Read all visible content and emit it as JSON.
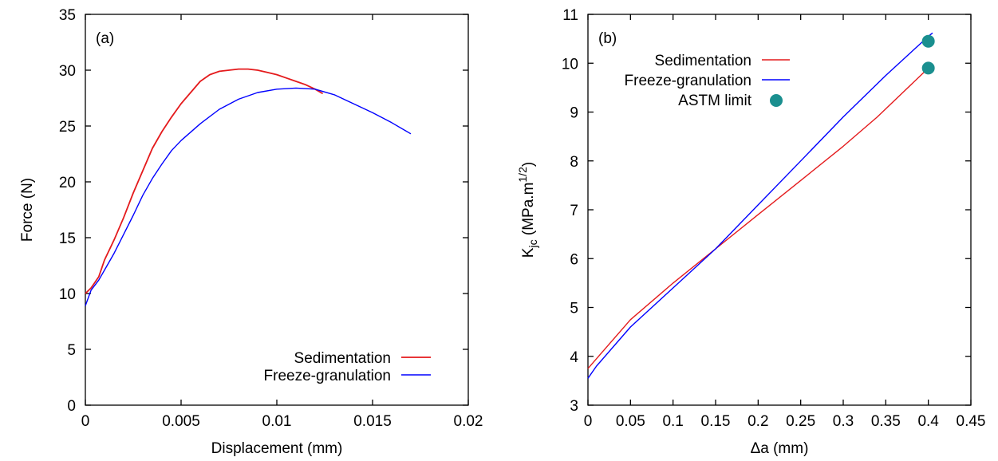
{
  "chart_data": [
    {
      "type": "line",
      "panel_label": "(a)",
      "xlabel": "Displacement (mm)",
      "ylabel": "Force (N)",
      "xlim": [
        0,
        0.02
      ],
      "ylim": [
        0,
        35
      ],
      "xticks": [
        "0",
        "0.005",
        "0.01",
        "0.015",
        "0.02"
      ],
      "yticks": [
        "0",
        "5",
        "10",
        "15",
        "20",
        "25",
        "30",
        "35"
      ],
      "grid": false,
      "legend_position": "bottom-right",
      "series": [
        {
          "name": "Sedimentation",
          "color": "#e41a1c",
          "x": [
            0,
            0.0003,
            0.0007,
            0.001,
            0.0015,
            0.002,
            0.0025,
            0.003,
            0.0035,
            0.004,
            0.0045,
            0.005,
            0.0055,
            0.006,
            0.0065,
            0.007,
            0.0075,
            0.008,
            0.0085,
            0.009,
            0.0095,
            0.01,
            0.0105,
            0.011,
            0.0115,
            0.012,
            0.0124
          ],
          "y": [
            10.0,
            10.5,
            11.5,
            13.0,
            14.8,
            16.8,
            19.0,
            21.0,
            23.0,
            24.5,
            25.8,
            27.0,
            28.0,
            29.0,
            29.6,
            29.9,
            30.0,
            30.1,
            30.1,
            30.0,
            29.8,
            29.6,
            29.3,
            29.0,
            28.7,
            28.3,
            27.9
          ]
        },
        {
          "name": "Freeze-granulation",
          "color": "#0000ff",
          "x": [
            0,
            0.0003,
            0.0007,
            0.001,
            0.0015,
            0.002,
            0.0025,
            0.003,
            0.0035,
            0.004,
            0.0045,
            0.005,
            0.006,
            0.007,
            0.008,
            0.009,
            0.01,
            0.011,
            0.012,
            0.013,
            0.014,
            0.015,
            0.016,
            0.017
          ],
          "y": [
            8.9,
            10.3,
            11.2,
            12.1,
            13.6,
            15.3,
            17.0,
            18.8,
            20.3,
            21.6,
            22.8,
            23.7,
            25.2,
            26.5,
            27.4,
            28.0,
            28.3,
            28.4,
            28.3,
            27.8,
            27.0,
            26.2,
            25.3,
            24.3
          ]
        }
      ]
    },
    {
      "type": "line",
      "panel_label": "(b)",
      "xlabel": "Δa (mm)",
      "ylabel_main": "K",
      "ylabel_sub": "jc",
      "ylabel_rest": " (MPa.m",
      "ylabel_sup": "1/2",
      "ylabel_end": ")",
      "xlim": [
        0,
        0.45
      ],
      "ylim": [
        3,
        11
      ],
      "xticks": [
        "0",
        "0.05",
        "0.1",
        "0.15",
        "0.2",
        "0.25",
        "0.3",
        "0.35",
        "0.4",
        "0.45"
      ],
      "yticks": [
        "3",
        "4",
        "5",
        "6",
        "7",
        "8",
        "9",
        "10",
        "11"
      ],
      "grid": false,
      "legend_position": "top-left",
      "series": [
        {
          "name": "Sedimentation",
          "color": "#e41a1c",
          "x": [
            0,
            0.02,
            0.05,
            0.08,
            0.1,
            0.15,
            0.2,
            0.25,
            0.3,
            0.34,
            0.37,
            0.4
          ],
          "y": [
            3.75,
            4.15,
            4.75,
            5.2,
            5.5,
            6.2,
            6.9,
            7.6,
            8.3,
            8.9,
            9.4,
            9.9
          ]
        },
        {
          "name": "Freeze-granulation",
          "color": "#0000ff",
          "x": [
            0,
            0.01,
            0.03,
            0.05,
            0.1,
            0.15,
            0.2,
            0.25,
            0.3,
            0.35,
            0.4,
            0.405
          ],
          "y": [
            3.55,
            3.8,
            4.2,
            4.6,
            5.4,
            6.2,
            7.1,
            8.0,
            8.9,
            9.75,
            10.55,
            10.62
          ]
        }
      ],
      "markers": {
        "name": "ASTM limit",
        "color": "#1a8f8f",
        "x": [
          0.4,
          0.4
        ],
        "y": [
          10.45,
          9.9
        ]
      }
    }
  ]
}
